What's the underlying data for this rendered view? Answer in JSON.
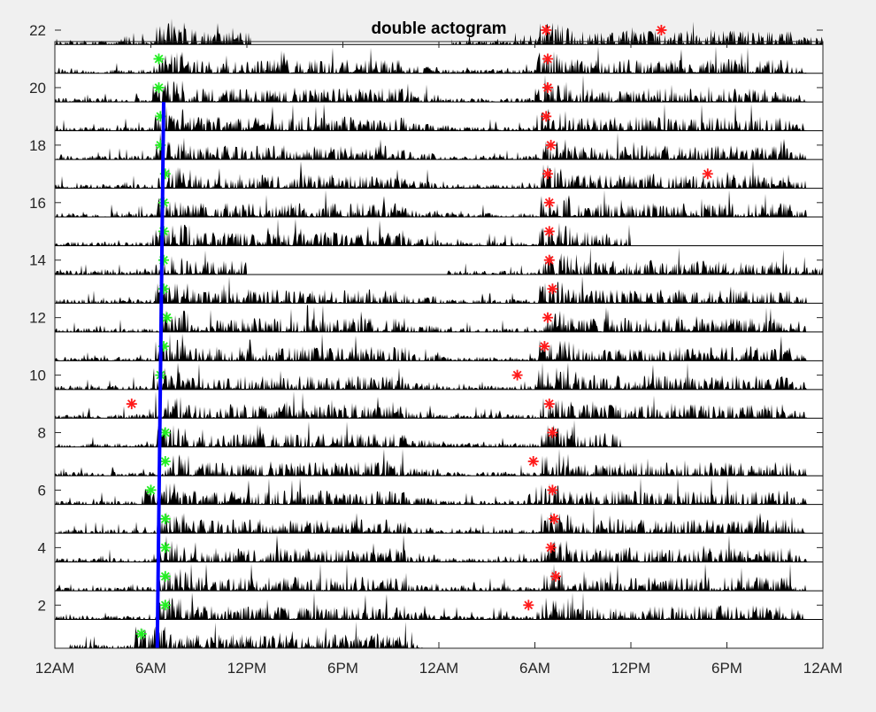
{
  "chart_data": {
    "type": "actogram",
    "title": "double actogram",
    "xlabel": "",
    "ylabel": "",
    "x_tick_labels": [
      "12AM",
      "6AM",
      "12PM",
      "6PM",
      "12AM",
      "6AM",
      "12PM",
      "6PM",
      "12AM"
    ],
    "x_range_hours": [
      0,
      48
    ],
    "y_range": [
      1,
      22
    ],
    "y_tick_values": [
      2,
      4,
      6,
      8,
      10,
      12,
      14,
      16,
      18,
      20,
      22
    ],
    "days": 22,
    "grid": false,
    "colors": {
      "activity": "#000000",
      "onset_marker_green": "#22ee22",
      "onset_marker_red": "#ff1a1a",
      "fit_line": "#0000ff",
      "axes": "#262626",
      "background": "#f0f0f0",
      "plot_background": "#ffffff"
    },
    "rows": [
      {
        "day": 1,
        "start": 0.9,
        "end": 23.0,
        "green": 5.4
      },
      {
        "day": 2,
        "start": 0,
        "end": 47.0,
        "green": 6.9,
        "red": 29.6
      },
      {
        "day": 3,
        "start": 0,
        "end": 47.0,
        "green": 6.9,
        "red": 31.3
      },
      {
        "day": 4,
        "start": 0,
        "end": 47.0,
        "green": 6.9,
        "red": 31.0
      },
      {
        "day": 5,
        "start": 0,
        "end": 47.0,
        "green": 6.9,
        "red": 31.2
      },
      {
        "day": 6,
        "start": 0,
        "end": 47.0,
        "green": 6.0,
        "red": 31.1
      },
      {
        "day": 7,
        "start": 0,
        "end": 47.0,
        "green": 6.9,
        "red": 29.9
      },
      {
        "day": 8,
        "start": 0,
        "end": 35.5,
        "green": 6.9,
        "red": 31.1
      },
      {
        "day": 9,
        "start": 0,
        "end": 47.0,
        "red_early": 4.8,
        "red": 30.9
      },
      {
        "day": 10,
        "start": 0,
        "end": 47.0,
        "green": 6.6,
        "red": 28.9
      },
      {
        "day": 11,
        "start": 0,
        "end": 47.0,
        "green": 6.8,
        "red": 30.6
      },
      {
        "day": 12,
        "start": 0,
        "end": 47.0,
        "green": 7.0,
        "red": 30.8
      },
      {
        "day": 13,
        "start": 0,
        "end": 47.0,
        "green": 6.8,
        "red": 31.1
      },
      {
        "day": 14,
        "start": 0,
        "end": 12.0,
        "start2": 24.4,
        "end2": 48.0,
        "green": 6.8,
        "red": 30.9
      },
      {
        "day": 15,
        "start": 0,
        "end": 36.0,
        "green": 6.8,
        "red": 30.9
      },
      {
        "day": 16,
        "start": 0,
        "end": 47.0,
        "green": 6.8,
        "red": 30.9
      },
      {
        "day": 17,
        "start": 0,
        "end": 47.0,
        "green": 6.9,
        "red": 30.8,
        "red2": 40.8
      },
      {
        "day": 18,
        "start": 0,
        "end": 47.0,
        "green": 6.6,
        "red": 31.0
      },
      {
        "day": 19,
        "start": 0,
        "end": 47.0,
        "green": 6.6,
        "red": 30.7
      },
      {
        "day": 20,
        "start": 0,
        "end": 47.0,
        "green": 6.5,
        "red": 30.8
      },
      {
        "day": 21,
        "start": 0,
        "end": 47.0,
        "green": 6.5,
        "red": 30.8
      },
      {
        "day": 22,
        "start": 0,
        "end": 12.3,
        "start2": 24.8,
        "end2": 48.0,
        "red": 30.7,
        "red2": 37.9
      }
    ],
    "fit_line": {
      "day_start": 1,
      "day_end": 19,
      "hour_start": 6.4,
      "hour_end": 6.8
    }
  }
}
